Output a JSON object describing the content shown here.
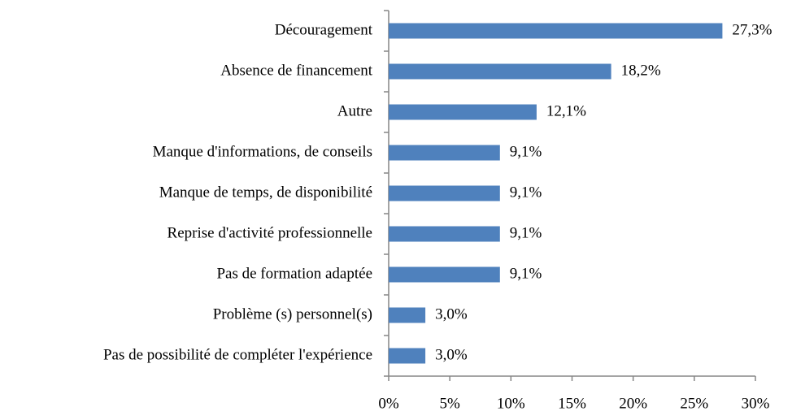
{
  "chart_data": {
    "type": "barh",
    "categories": [
      "Découragement",
      "Absence de financement",
      "Autre",
      "Manque d'informations, de conseils",
      "Manque de temps, de disponibilité",
      "Reprise d'activité professionnelle",
      "Pas de formation adaptée",
      "Problème (s)  personnel(s)",
      "Pas de possibilité  de compléter l'expérience"
    ],
    "values": [
      27.3,
      18.2,
      12.1,
      9.1,
      9.1,
      9.1,
      9.1,
      3.0,
      3.0
    ],
    "value_labels": [
      "27,3%",
      "18,2%",
      "12,1%",
      "9,1%",
      "9,1%",
      "9,1%",
      "9,1%",
      "3,0%",
      "3,0%"
    ],
    "color": "#4f81bd",
    "xlim": [
      0,
      30
    ],
    "xticks": [
      {
        "value": 0,
        "label": "0%"
      },
      {
        "value": 5,
        "label": "5%"
      },
      {
        "value": 10,
        "label": "10%"
      },
      {
        "value": 15,
        "label": "15%"
      },
      {
        "value": 20,
        "label": "20%"
      },
      {
        "value": 25,
        "label": "25%"
      },
      {
        "value": 30,
        "label": "30%"
      }
    ],
    "grid": false
  }
}
